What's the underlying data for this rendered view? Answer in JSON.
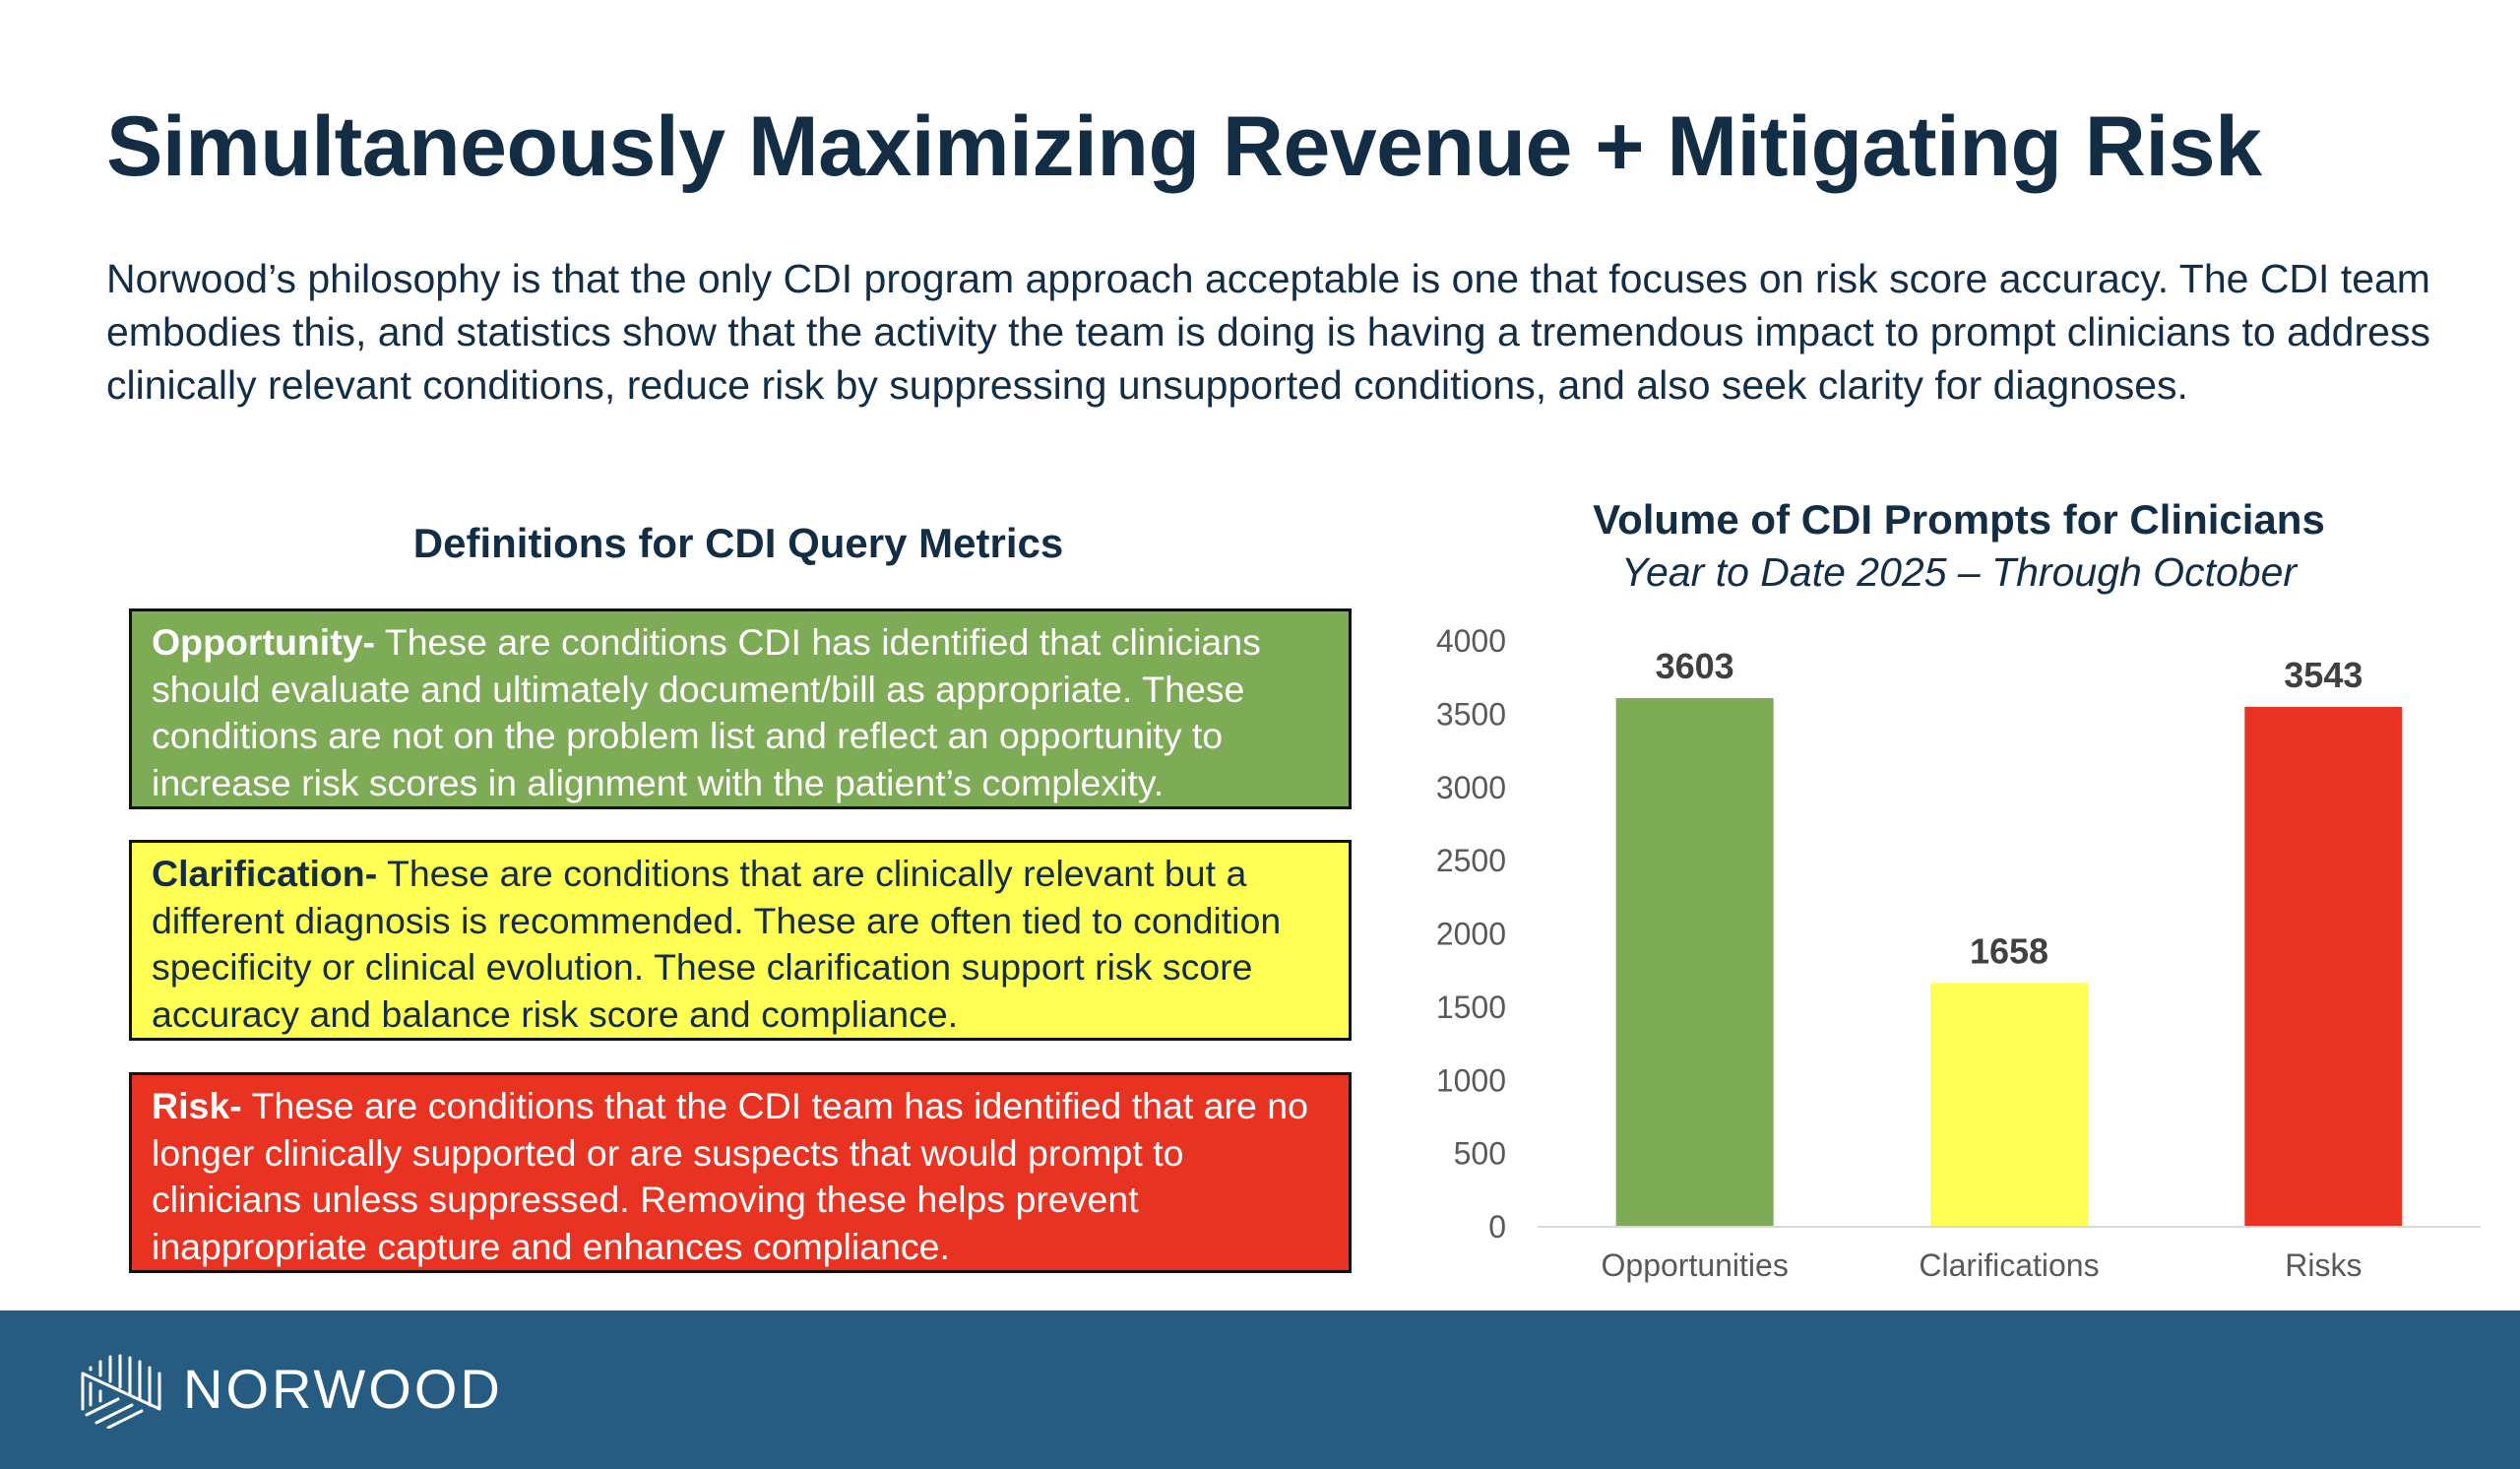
{
  "slide": {
    "title": "Simultaneously Maximizing Revenue + Mitigating Risk",
    "intro": "Norwood’s philosophy is that the only CDI program approach acceptable is one that focuses on risk score accuracy. The CDI team embodies this, and statistics show that the activity the team is doing is having a tremendous impact to prompt clinicians to address clinically relevant conditions, reduce risk by suppressing unsupported conditions, and also seek clarity for diagnoses."
  },
  "definitions": {
    "heading": "Definitions for CDI Query Metrics",
    "items": [
      {
        "term": "Opportunity-",
        "text": " These are conditions CDI has identified that clinicians should evaluate and ultimately document/bill as appropriate. These conditions are not on the problem list and reflect an opportunity to increase risk scores in alignment with the patient’s complexity.",
        "color": "#7eab55"
      },
      {
        "term": "Clarification-",
        "text": " These are conditions that are clinically relevant but a different diagnosis is recommended. These are often tied to condition specificity or clinical evolution. These clarification support risk score accuracy and balance risk score and compliance.",
        "color": "#ffff54"
      },
      {
        "term": "Risk-",
        "text": " These are conditions that the CDI team has identified that are no longer clinically supported or are suspects that would prompt to clinicians unless suppressed. Removing these helps prevent inappropriate capture and enhances compliance.",
        "color": "#e83323"
      }
    ]
  },
  "chart_data": {
    "type": "bar",
    "title": "Volume of CDI Prompts for Clinicians",
    "subtitle": "Year to Date 2025 – Through October",
    "categories": [
      "Opportunities",
      "Clarifications",
      "Risks"
    ],
    "values": [
      3603,
      1658,
      3543
    ],
    "data_labels": [
      "3603",
      "1658",
      "3543"
    ],
    "colors": [
      "#7eab55",
      "#ffff54",
      "#e83323"
    ],
    "xlabel": "",
    "ylabel": "",
    "ylim": [
      0,
      4000
    ],
    "yticks": [
      0,
      500,
      1000,
      1500,
      2000,
      2500,
      3000,
      3500,
      4000
    ],
    "grid": false,
    "legend": "none"
  },
  "footer": {
    "brand": "NORWOOD",
    "background": "#275c82"
  }
}
